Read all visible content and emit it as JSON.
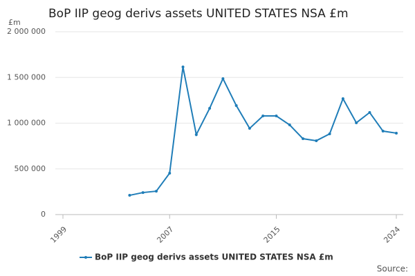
{
  "chart_data": {
    "type": "line",
    "title": "BoP IIP geog derivs assets UNITED STATES NSA £m",
    "y_unit": "£m",
    "source": "Source:",
    "x": [
      2004,
      2005,
      2006,
      2007,
      2008,
      2009,
      2010,
      2011,
      2012,
      2013,
      2014,
      2015,
      2016,
      2017,
      2018,
      2019,
      2020,
      2021,
      2022,
      2023,
      2024
    ],
    "series": [
      {
        "name": "BoP IIP geog derivs assets UNITED STATES NSA £m",
        "color": "#1f7db8",
        "values": [
          211000,
          241000,
          256000,
          453000,
          1615000,
          875000,
          1162000,
          1487000,
          1192000,
          943000,
          1079000,
          1079000,
          981000,
          830000,
          808000,
          883000,
          1268000,
          1004000,
          1117000,
          913000,
          891000
        ]
      }
    ],
    "xlim": [
      1999,
      2024
    ],
    "xticks": [
      1999,
      2007,
      2015,
      2024
    ],
    "ylim": [
      0,
      2000000
    ],
    "yticks": [
      0,
      {
        "value": 500000,
        "label": "500 000"
      },
      {
        "value": 1000000,
        "label": "1 000 000"
      },
      {
        "value": 1500000,
        "label": "1 500 000"
      },
      {
        "value": 2000000,
        "label": "2 000 000"
      }
    ],
    "grid": true
  }
}
